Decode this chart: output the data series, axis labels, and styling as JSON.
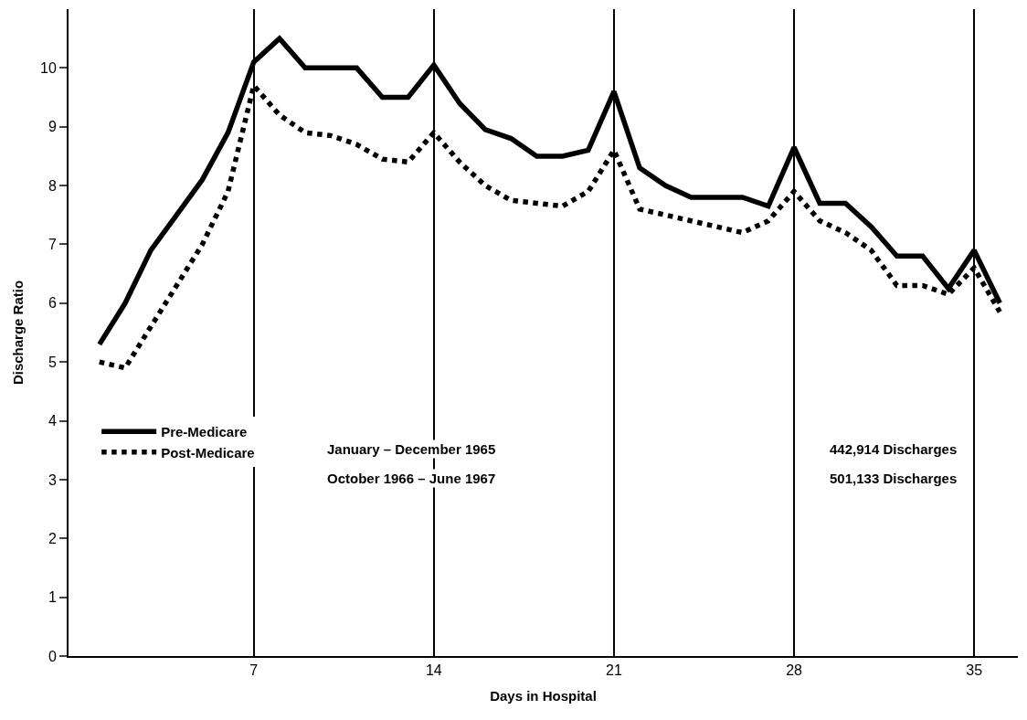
{
  "chart_data": {
    "type": "line",
    "xlabel": "Days in Hospital",
    "ylabel": "Discharge Ratio",
    "x": [
      1,
      2,
      3,
      4,
      5,
      6,
      7,
      8,
      9,
      10,
      11,
      12,
      13,
      14,
      15,
      16,
      17,
      18,
      19,
      20,
      21,
      22,
      23,
      24,
      25,
      26,
      27,
      28,
      29,
      30,
      31,
      32,
      33,
      34,
      35,
      36
    ],
    "series": [
      {
        "name": "Pre-Medicare",
        "color": "#000000",
        "line_style": "solid",
        "values": [
          5.3,
          6.0,
          6.9,
          7.5,
          8.1,
          8.9,
          10.1,
          10.5,
          10.0,
          10.0,
          10.0,
          9.5,
          9.5,
          10.05,
          9.4,
          8.95,
          8.8,
          8.5,
          8.5,
          8.6,
          9.6,
          8.3,
          8.0,
          7.8,
          7.8,
          7.8,
          7.65,
          8.65,
          7.7,
          7.7,
          7.3,
          6.8,
          6.8,
          6.25,
          6.9,
          6.0
        ]
      },
      {
        "name": "Post-Medicare",
        "color": "#000000",
        "line_style": "dotted",
        "values": [
          5.0,
          4.9,
          5.6,
          6.3,
          7.0,
          7.9,
          9.7,
          9.2,
          8.9,
          8.85,
          8.7,
          8.45,
          8.4,
          8.9,
          8.4,
          8.0,
          7.75,
          7.7,
          7.65,
          7.9,
          8.6,
          7.6,
          7.5,
          7.4,
          7.3,
          7.2,
          7.4,
          7.9,
          7.4,
          7.2,
          6.9,
          6.3,
          6.3,
          6.15,
          6.6,
          5.85
        ]
      }
    ],
    "annotations": [
      "January – December 1965",
      "442,914 Discharges",
      "October 1966 – June 1967",
      "501,133 Discharges"
    ],
    "xlim": [
      -0.2,
      36.7
    ],
    "ylim": [
      0,
      11
    ],
    "xticks": [
      7,
      14,
      21,
      28,
      35
    ],
    "yticks": [
      0,
      1,
      2,
      3,
      4,
      5,
      6,
      7,
      8,
      9,
      10
    ],
    "grid": "x",
    "legend": "bottom left",
    "marker": "none"
  }
}
